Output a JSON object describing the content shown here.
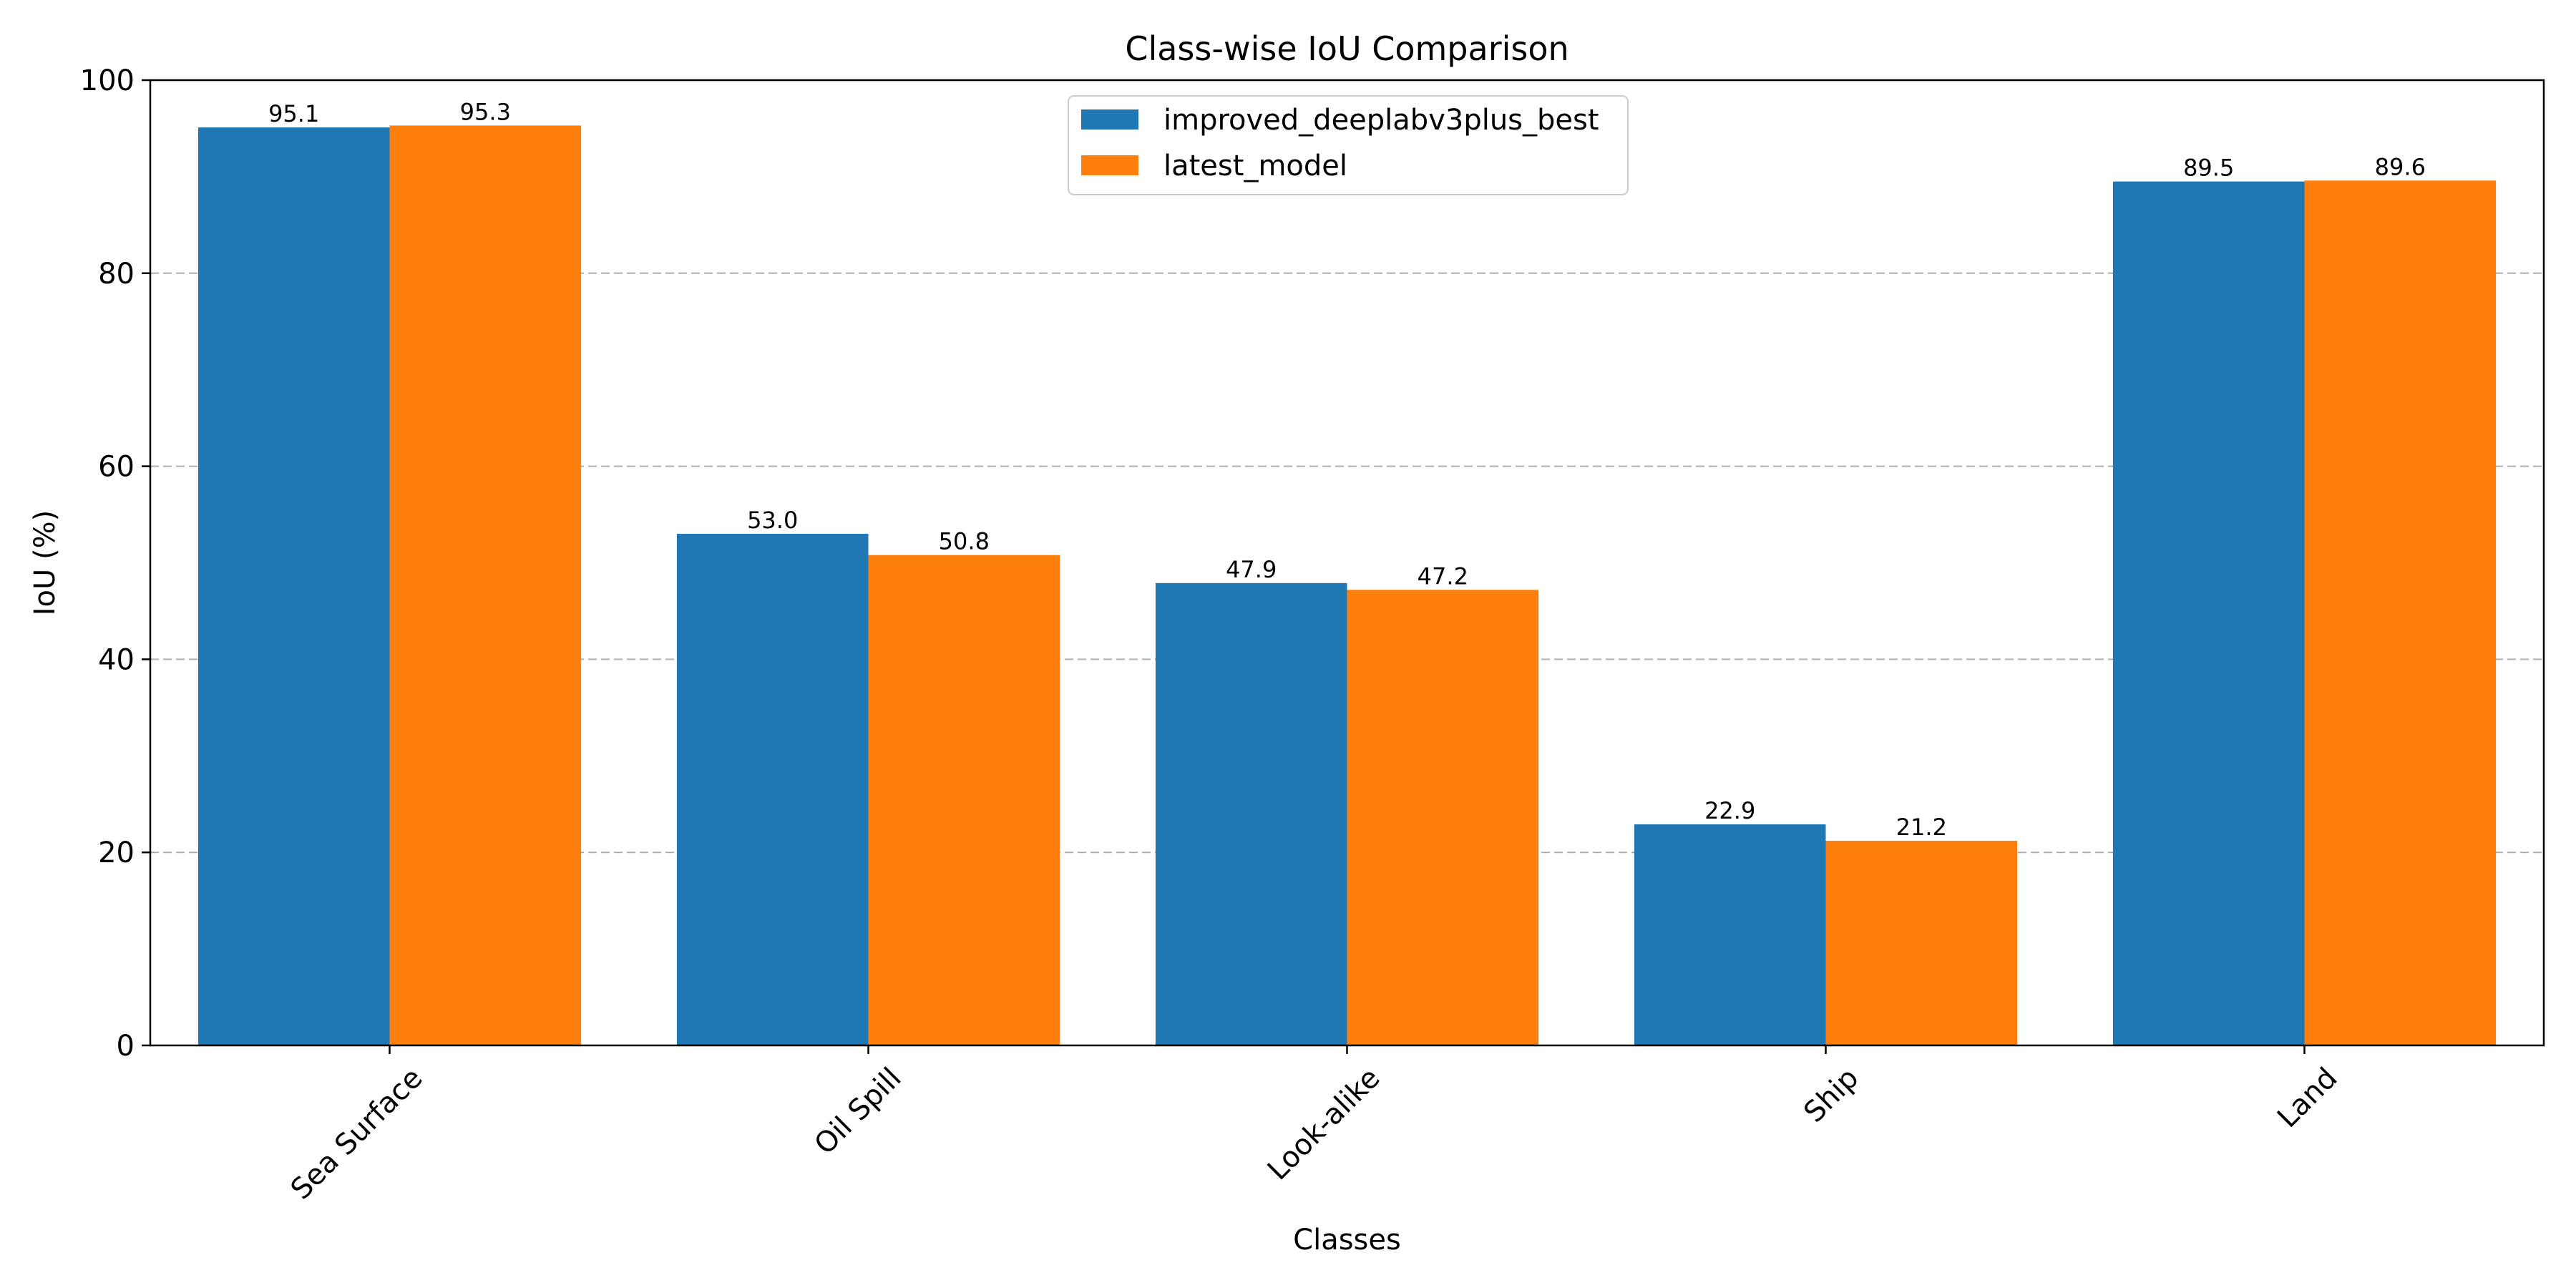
{
  "chart_data": {
    "type": "bar",
    "title": "Class-wise IoU Comparison",
    "xlabel": "Classes",
    "ylabel": "IoU (%)",
    "categories": [
      "Sea Surface",
      "Oil Spill",
      "Look-alike",
      "Ship",
      "Land"
    ],
    "series": [
      {
        "name": "improved_deeplabv3plus_best",
        "color": "#1f77b4",
        "values": [
          95.1,
          53.0,
          47.9,
          22.9,
          89.5
        ],
        "labels": [
          "95.1",
          "53.0",
          "47.9",
          "22.9",
          "89.5"
        ]
      },
      {
        "name": "latest_model",
        "color": "#ff7f0e",
        "values": [
          95.3,
          50.8,
          47.2,
          21.2,
          89.6
        ],
        "labels": [
          "95.3",
          "50.8",
          "47.2",
          "21.2",
          "89.6"
        ]
      }
    ],
    "ylim": [
      0,
      100
    ],
    "yticks": [
      0,
      20,
      40,
      60,
      80,
      100
    ],
    "ytick_labels": [
      "0",
      "20",
      "40",
      "60",
      "80",
      "100"
    ],
    "grid": "horizontal-dashed",
    "legend_position": "top-center"
  }
}
